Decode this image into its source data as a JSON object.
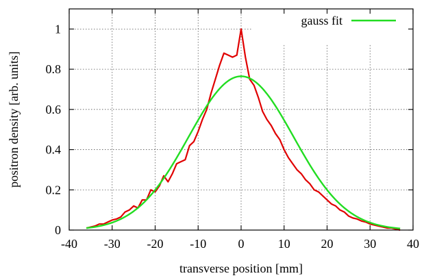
{
  "chart_data": {
    "type": "line",
    "xlabel": "transverse position [mm]",
    "ylabel": "positron density [arb. units]",
    "xlim": [
      -40,
      40
    ],
    "ylim": [
      0,
      1.1
    ],
    "xticks": [
      -40,
      -30,
      -20,
      -10,
      0,
      10,
      20,
      30,
      40
    ],
    "yticks": [
      0,
      0.2,
      0.4,
      0.6,
      0.8,
      1
    ],
    "xtick_labels": [
      "-40",
      "-30",
      "-20",
      "-10",
      "0",
      "10",
      "20",
      "30",
      "40"
    ],
    "ytick_labels": [
      "0",
      "0.2",
      "0.4",
      "0.6",
      "0.8",
      "1"
    ],
    "grid": true,
    "legend_position": "top-right",
    "series": [
      {
        "name": "",
        "color": "#e00000",
        "x": [
          -36,
          -35,
          -34,
          -33,
          -32,
          -31,
          -30,
          -29,
          -28,
          -27,
          -26,
          -25,
          -24,
          -23,
          -22,
          -21,
          -20,
          -19,
          -18,
          -17,
          -16,
          -15,
          -14,
          -13,
          -12,
          -11,
          -10,
          -9,
          -8,
          -7,
          -6,
          -5,
          -4,
          -3,
          -2,
          -1,
          0,
          1,
          2,
          3,
          4,
          5,
          6,
          7,
          8,
          9,
          10,
          11,
          12,
          13,
          14,
          15,
          16,
          17,
          18,
          19,
          20,
          21,
          22,
          23,
          24,
          25,
          26,
          27,
          28,
          29,
          30,
          31,
          32,
          33,
          34,
          35,
          36,
          37
        ],
        "y": [
          0.01,
          0.015,
          0.02,
          0.03,
          0.03,
          0.04,
          0.05,
          0.055,
          0.065,
          0.09,
          0.1,
          0.12,
          0.11,
          0.15,
          0.15,
          0.2,
          0.19,
          0.22,
          0.27,
          0.24,
          0.28,
          0.33,
          0.34,
          0.35,
          0.42,
          0.44,
          0.49,
          0.55,
          0.6,
          0.68,
          0.75,
          0.82,
          0.88,
          0.87,
          0.86,
          0.87,
          1.0,
          0.86,
          0.75,
          0.72,
          0.66,
          0.59,
          0.55,
          0.52,
          0.48,
          0.45,
          0.4,
          0.36,
          0.33,
          0.3,
          0.28,
          0.25,
          0.23,
          0.2,
          0.19,
          0.17,
          0.15,
          0.13,
          0.12,
          0.1,
          0.09,
          0.07,
          0.06,
          0.055,
          0.045,
          0.04,
          0.03,
          0.025,
          0.02,
          0.015,
          0.01,
          0.01,
          0.005,
          0.0
        ]
      },
      {
        "name": "gauss fit",
        "color": "#22dd22",
        "function": {
          "amplitude": 0.765,
          "mean": 0,
          "sigma": 12.2
        },
        "x_range": [
          -36,
          37
        ]
      }
    ]
  }
}
